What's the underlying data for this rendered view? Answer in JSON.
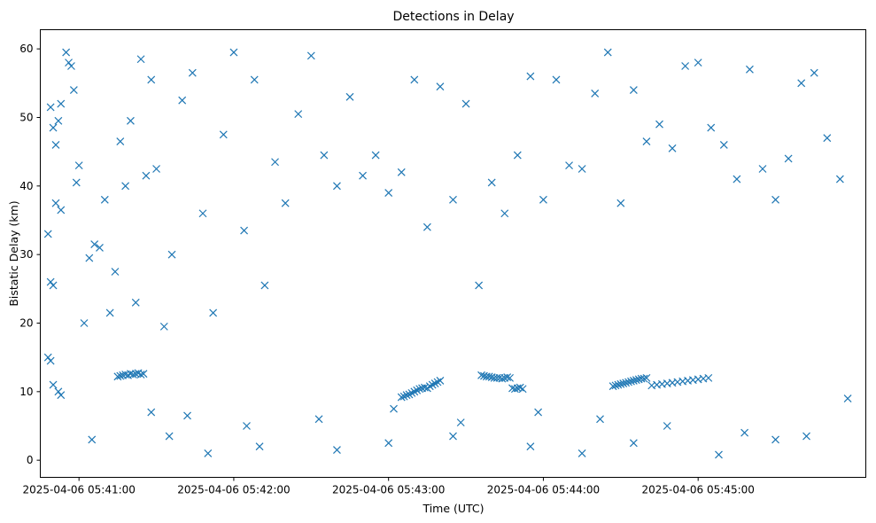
{
  "chart_data": {
    "type": "scatter",
    "title": "Detections in Delay",
    "xlabel": "Time (UTC)",
    "ylabel": "Bistatic Delay (km)",
    "x_ticks": [
      "2025-04-06 05:41:00",
      "2025-04-06 05:42:00",
      "2025-04-06 05:43:00",
      "2025-04-06 05:44:00",
      "2025-04-06 05:45:00"
    ],
    "y_ticks": [
      0,
      10,
      20,
      30,
      40,
      50,
      60
    ],
    "xlim": [
      "2025-04-06 05:40:45",
      "2025-04-06 05:46:05"
    ],
    "ylim": [
      -2.5,
      62.8
    ],
    "grid": false,
    "marker": "x",
    "color": "#1f77b4",
    "series": [
      {
        "x": [
          "05:40:48",
          "05:40:49",
          "05:40:50",
          "05:40:51",
          "05:40:52",
          "05:40:53",
          "05:40:49",
          "05:40:50",
          "05:40:51",
          "05:40:53",
          "05:40:48",
          "05:40:49",
          "05:40:50",
          "05:40:52",
          "05:40:53",
          "05:40:55",
          "05:40:56",
          "05:40:57",
          "05:40:58",
          "05:40:59",
          "05:41:00",
          "05:41:02",
          "05:41:04",
          "05:41:06",
          "05:41:08",
          "05:41:10",
          "05:41:12",
          "05:41:14",
          "05:41:16",
          "05:41:18",
          "05:41:20",
          "05:41:22",
          "05:41:24",
          "05:41:26",
          "05:41:28",
          "05:41:30",
          "05:41:33",
          "05:41:36",
          "05:41:40",
          "05:41:44",
          "05:41:48",
          "05:41:52",
          "05:41:56",
          "05:42:00",
          "05:42:04",
          "05:42:08",
          "05:42:12",
          "05:42:16",
          "05:42:20",
          "05:42:25",
          "05:42:30",
          "05:42:35",
          "05:42:40",
          "05:42:45",
          "05:42:50",
          "05:42:55",
          "05:43:00",
          "05:43:05",
          "05:43:10",
          "05:43:15",
          "05:43:20",
          "05:43:25",
          "05:43:30",
          "05:43:35",
          "05:43:40",
          "05:43:45",
          "05:43:50",
          "05:43:55",
          "05:44:00",
          "05:44:05",
          "05:44:10",
          "05:44:15",
          "05:44:20",
          "05:44:25",
          "05:44:30",
          "05:44:35",
          "05:44:40",
          "05:44:45",
          "05:44:50",
          "05:44:55",
          "05:45:00",
          "05:45:05",
          "05:45:10",
          "05:45:15",
          "05:45:20",
          "05:45:25",
          "05:45:30",
          "05:45:35",
          "05:45:40",
          "05:45:45",
          "05:45:50",
          "05:45:55",
          "05:41:15",
          "05:41:16",
          "05:41:17",
          "05:41:18",
          "05:41:19",
          "05:41:20",
          "05:41:21",
          "05:41:22",
          "05:41:23",
          "05:41:24",
          "05:41:25",
          "05:43:05",
          "05:43:06",
          "05:43:07",
          "05:43:08",
          "05:43:09",
          "05:43:10",
          "05:43:11",
          "05:43:12",
          "05:43:13",
          "05:43:14",
          "05:43:15",
          "05:43:16",
          "05:43:17",
          "05:43:18",
          "05:43:19",
          "05:43:20",
          "05:43:36",
          "05:43:37",
          "05:43:38",
          "05:43:39",
          "05:43:40",
          "05:43:41",
          "05:43:42",
          "05:43:43",
          "05:43:44",
          "05:43:45",
          "05:43:46",
          "05:43:47",
          "05:43:48",
          "05:43:49",
          "05:43:50",
          "05:43:51",
          "05:43:52",
          "05:44:27",
          "05:44:28",
          "05:44:29",
          "05:44:30",
          "05:44:31",
          "05:44:32",
          "05:44:33",
          "05:44:34",
          "05:44:35",
          "05:44:36",
          "05:44:37",
          "05:44:38",
          "05:44:39",
          "05:44:40",
          "05:44:42",
          "05:44:44",
          "05:44:46",
          "05:44:48",
          "05:44:50",
          "05:44:52",
          "05:44:54",
          "05:44:56",
          "05:44:58",
          "05:45:00",
          "05:45:02",
          "05:45:04",
          "05:41:05",
          "05:41:35",
          "05:41:50",
          "05:42:10",
          "05:42:40",
          "05:43:00",
          "05:43:25",
          "05:43:55",
          "05:44:15",
          "05:44:35",
          "05:45:08",
          "05:45:30",
          "05:41:28",
          "05:41:42",
          "05:42:05",
          "05:42:33",
          "05:43:02",
          "05:43:28",
          "05:43:58",
          "05:44:22",
          "05:44:48",
          "05:45:18",
          "05:45:42",
          "05:45:58"
        ],
        "y": [
          33.0,
          51.5,
          48.5,
          46.0,
          49.5,
          52.0,
          26.0,
          25.5,
          37.5,
          36.5,
          15.0,
          14.5,
          11.0,
          10.0,
          9.5,
          59.5,
          58.0,
          57.5,
          54.0,
          40.5,
          43.0,
          20.0,
          29.5,
          31.5,
          31.0,
          38.0,
          21.5,
          27.5,
          46.5,
          40.0,
          49.5,
          23.0,
          58.5,
          41.5,
          55.5,
          42.5,
          19.5,
          30.0,
          52.5,
          56.5,
          36.0,
          21.5,
          47.5,
          59.5,
          33.5,
          55.5,
          25.5,
          43.5,
          37.5,
          50.5,
          59.0,
          44.5,
          40.0,
          53.0,
          41.5,
          44.5,
          39.0,
          42.0,
          55.5,
          34.0,
          54.5,
          38.0,
          52.0,
          25.5,
          40.5,
          36.0,
          44.5,
          56.0,
          38.0,
          55.5,
          43.0,
          42.5,
          53.5,
          59.5,
          37.5,
          54.0,
          46.5,
          49.0,
          45.5,
          57.5,
          58.0,
          48.5,
          46.0,
          41.0,
          57.0,
          42.5,
          38.0,
          44.0,
          55.0,
          56.5,
          47.0,
          41.0,
          12.2,
          12.3,
          12.4,
          12.5,
          12.4,
          12.6,
          12.5,
          12.6,
          12.7,
          12.5,
          12.6,
          9.2,
          9.3,
          9.5,
          9.6,
          9.8,
          10.0,
          10.2,
          10.4,
          10.5,
          10.6,
          10.5,
          10.8,
          11.0,
          11.2,
          11.4,
          11.6,
          12.4,
          12.3,
          12.2,
          12.2,
          12.1,
          12.0,
          12.0,
          12.0,
          11.9,
          12.0,
          12.1,
          12.0,
          10.5,
          10.4,
          10.5,
          10.6,
          10.4,
          10.8,
          10.9,
          11.0,
          11.1,
          11.2,
          11.3,
          11.4,
          11.5,
          11.6,
          11.7,
          11.8,
          11.9,
          11.9,
          12.0,
          10.9,
          11.0,
          11.1,
          11.2,
          11.3,
          11.4,
          11.5,
          11.6,
          11.7,
          11.8,
          11.9,
          12.0,
          3.0,
          3.5,
          1.0,
          2.0,
          1.5,
          2.5,
          3.5,
          2.0,
          1.0,
          2.5,
          0.8,
          3.0,
          7.0,
          6.5,
          5.0,
          6.0,
          7.5,
          5.5,
          7.0,
          6.0,
          5.0,
          4.0,
          3.5,
          9.0
        ]
      }
    ]
  }
}
